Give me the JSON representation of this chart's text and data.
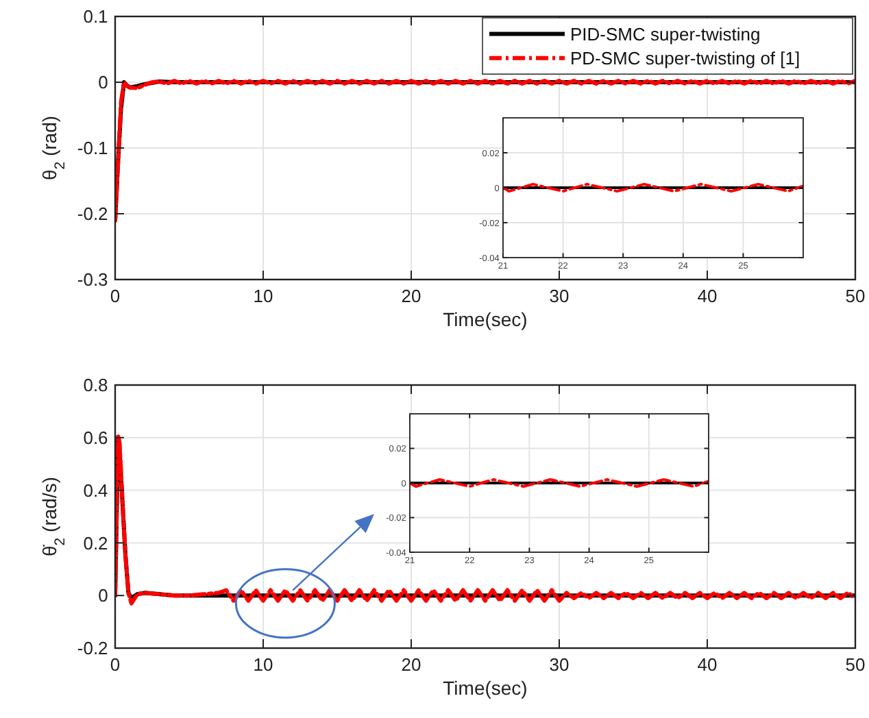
{
  "chart_data": [
    {
      "type": "line",
      "ylabel": "θ$_{2}$ (rad)",
      "xlabel": "Time(sec)",
      "xlim": [
        0,
        50
      ],
      "xticks": [
        0,
        10,
        20,
        30,
        40,
        50
      ],
      "ylim": [
        -0.3,
        0.1
      ],
      "yticks": [
        -0.3,
        -0.2,
        -0.1,
        0,
        0.1
      ],
      "grid": true,
      "legend": "top right",
      "series": [
        {
          "name": "PID-SMC super-twisting",
          "color": "#000000",
          "line_style": "solid",
          "x": [
            0,
            0.2,
            0.4,
            0.6,
            0.8,
            1,
            1.5,
            2,
            3,
            4,
            50
          ],
          "values": [
            -0.21,
            -0.12,
            -0.04,
            0,
            -0.005,
            -0.008,
            -0.006,
            -0.003,
            0.001,
            0,
            0
          ]
        },
        {
          "name": "PD-SMC super-twisting of [1]",
          "color": "#ff0000",
          "line_style": "dashed",
          "x": [
            0,
            0.2,
            0.4,
            0.6,
            0.8,
            1,
            1.5,
            2,
            2.5,
            3,
            3.5,
            4,
            4.5,
            5,
            5.5,
            6,
            6.5,
            7,
            7.5,
            8,
            8.5,
            9,
            9.5,
            10,
            10.5,
            11,
            11.5,
            12,
            12.5,
            13,
            13.5,
            14,
            14.5,
            15,
            15.5,
            16,
            16.5,
            17,
            17.5,
            18,
            18.5,
            19,
            19.5,
            20,
            20.5,
            21,
            21.5,
            22,
            22.5,
            23,
            23.5,
            24,
            24.5,
            25,
            25.5,
            26,
            26.5,
            27,
            27.5,
            28,
            28.5,
            29,
            29.5,
            30,
            30.5,
            31,
            31.5,
            32,
            32.5,
            33,
            33.5,
            34,
            34.5,
            35,
            35.5,
            36,
            36.5,
            37,
            37.5,
            38,
            38.5,
            39,
            39.5,
            40,
            40.5,
            41,
            41.5,
            42,
            42.5,
            43,
            43.5,
            44,
            44.5,
            45,
            45.5,
            46,
            46.5,
            47,
            47.5,
            48,
            48.5,
            49,
            49.5,
            50
          ],
          "values": [
            -0.21,
            -0.12,
            -0.03,
            0,
            -0.006,
            -0.008,
            -0.009,
            -0.004,
            0,
            0.001,
            -0.002,
            0.002,
            -0.002,
            0.002,
            -0.002,
            0.002,
            -0.002,
            0.002,
            -0.002,
            0.002,
            -0.002,
            0.002,
            -0.002,
            0.002,
            -0.002,
            0.002,
            -0.002,
            0.002,
            -0.002,
            0.002,
            -0.002,
            0.002,
            -0.002,
            0.002,
            -0.002,
            0.002,
            -0.002,
            0.002,
            -0.002,
            0.002,
            -0.002,
            0.002,
            -0.002,
            0.002,
            -0.002,
            0.002,
            -0.002,
            0.002,
            -0.002,
            0.002,
            -0.002,
            0.002,
            -0.002,
            0.002,
            -0.002,
            0.002,
            -0.002,
            0.002,
            -0.002,
            0.002,
            -0.002,
            0.002,
            -0.002,
            0.002,
            -0.002,
            0.002,
            -0.002,
            0.002,
            -0.002,
            0.002,
            -0.002,
            0.002,
            -0.002,
            0.002,
            -0.002,
            0.002,
            -0.002,
            0.002,
            -0.002,
            0.002,
            -0.002,
            0.002,
            -0.002,
            0.002,
            -0.002,
            0.002,
            -0.002,
            0.002,
            -0.002,
            0.002,
            -0.002,
            0.002,
            -0.002,
            0.002,
            -0.002,
            0.002,
            -0.002,
            0.002,
            -0.002,
            0.002,
            -0.002,
            0.002,
            -0.002,
            0.002
          ]
        }
      ]
    },
    {
      "type": "line",
      "xlim": [
        21,
        26
      ],
      "xticks": [
        21,
        22,
        23,
        24,
        25
      ],
      "ylim": [
        -0.04,
        0.04
      ],
      "yticks": [
        -0.04,
        -0.02,
        0,
        0.02
      ],
      "grid": true,
      "series": [
        {
          "color": "#000000",
          "line_style": "solid",
          "x": [
            21,
            26
          ],
          "values": [
            0,
            0
          ]
        },
        {
          "color": "#ff0000",
          "line_style": "dashed",
          "x": [
            21,
            21.1,
            21.5,
            22,
            22.4,
            22.9,
            23.35,
            23.85,
            24.3,
            24.8,
            25.25,
            25.75,
            26
          ],
          "values": [
            0,
            -0.002,
            0.002,
            -0.002,
            0.002,
            -0.002,
            0.002,
            -0.002,
            0.002,
            -0.002,
            0.002,
            -0.002,
            0.001
          ]
        }
      ]
    },
    {
      "type": "line",
      "ylabel": "θ̇$_{2}$ (rad/s)",
      "xlabel": "Time(sec)",
      "xlim": [
        0,
        50
      ],
      "xticks": [
        0,
        10,
        20,
        30,
        40,
        50
      ],
      "ylim": [
        -0.2,
        0.8
      ],
      "yticks": [
        -0.2,
        0,
        0.2,
        0.4,
        0.6,
        0.8
      ],
      "grid": true,
      "series": [
        {
          "color": "#000000",
          "line_style": "solid",
          "x": [
            0,
            0.2,
            0.3,
            0.5,
            0.7,
            0.9,
            1.1,
            1.5,
            2,
            3,
            4,
            5,
            50
          ],
          "values": [
            0,
            0.6,
            0.55,
            0.35,
            0.15,
            0.01,
            -0.01,
            0.005,
            0.01,
            0.005,
            0,
            0,
            0
          ]
        },
        {
          "color": "#ff0000",
          "line_style": "dashed",
          "x": [
            0,
            0.2,
            0.3,
            0.5,
            0.7,
            0.9,
            1.1,
            1.5,
            2,
            3,
            4,
            5,
            6,
            7,
            7.5,
            8,
            8.5,
            9,
            9.5,
            10,
            10.5,
            11,
            11.5,
            12,
            12.5,
            13,
            13.5,
            14,
            14.5,
            15,
            15.5,
            16,
            16.5,
            17,
            17.5,
            18,
            18.5,
            19,
            19.5,
            20,
            20.5,
            21,
            21.5,
            22,
            22.5,
            23,
            23.5,
            24,
            24.5,
            25,
            25.5,
            26,
            26.5,
            27,
            27.5,
            28,
            28.5,
            29,
            29.5,
            30,
            30.5,
            31,
            31.5,
            32,
            32.5,
            33,
            33.5,
            34,
            34.5,
            35,
            35.5,
            36,
            36.5,
            37,
            37.5,
            38,
            38.5,
            39,
            39.5,
            40,
            40.5,
            41,
            41.5,
            42,
            42.5,
            43,
            43.5,
            44,
            44.5,
            45,
            45.5,
            46,
            46.5,
            47,
            47.5,
            48,
            48.5,
            49,
            49.5,
            50
          ],
          "values": [
            0,
            0.61,
            0.58,
            0.35,
            0.15,
            0.01,
            -0.03,
            0.005,
            0.01,
            0.005,
            0,
            0,
            0.005,
            0.01,
            0.02,
            -0.02,
            0.02,
            -0.02,
            0.02,
            -0.02,
            0.02,
            -0.02,
            0.02,
            -0.02,
            0.02,
            -0.02,
            0.02,
            -0.02,
            0.02,
            -0.02,
            0.02,
            -0.02,
            0.02,
            -0.02,
            0.02,
            -0.02,
            0.02,
            -0.02,
            0.02,
            -0.02,
            0.02,
            -0.02,
            0.02,
            -0.02,
            0.02,
            -0.02,
            0.02,
            -0.02,
            0.02,
            -0.02,
            0.02,
            -0.02,
            0.02,
            -0.02,
            0.02,
            -0.02,
            0.02,
            -0.02,
            0.02,
            -0.02,
            0.01,
            -0.01,
            0.01,
            -0.01,
            0.01,
            -0.01,
            0.01,
            -0.01,
            0.01,
            -0.01,
            0.01,
            -0.01,
            0.01,
            -0.01,
            0.01,
            -0.01,
            0.01,
            -0.01,
            0.01,
            -0.01,
            0.01,
            -0.01,
            0.01,
            -0.01,
            0.01,
            -0.01,
            0.01,
            -0.01,
            0.01,
            -0.01,
            0.01,
            -0.01,
            0.01,
            -0.01,
            0.01,
            -0.01,
            0.01,
            -0.01,
            0.01,
            -0.01
          ]
        }
      ]
    },
    {
      "type": "line",
      "xlim": [
        21,
        26
      ],
      "xticks": [
        21,
        22,
        23,
        24,
        25
      ],
      "ylim": [
        -0.04,
        0.04
      ],
      "yticks": [
        -0.04,
        -0.02,
        0,
        0.02
      ],
      "grid": true,
      "series": [
        {
          "color": "#000000",
          "line_style": "solid",
          "x": [
            21,
            26
          ],
          "values": [
            0,
            0
          ]
        },
        {
          "color": "#ff0000",
          "line_style": "dashed",
          "x": [
            21,
            21.1,
            21.5,
            22,
            22.4,
            22.9,
            23.35,
            23.85,
            24.3,
            24.8,
            25.25,
            25.75,
            26
          ],
          "values": [
            0,
            -0.002,
            0.002,
            -0.002,
            0.002,
            -0.002,
            0.002,
            -0.002,
            0.002,
            -0.002,
            0.002,
            -0.002,
            0.001
          ]
        }
      ]
    }
  ]
}
